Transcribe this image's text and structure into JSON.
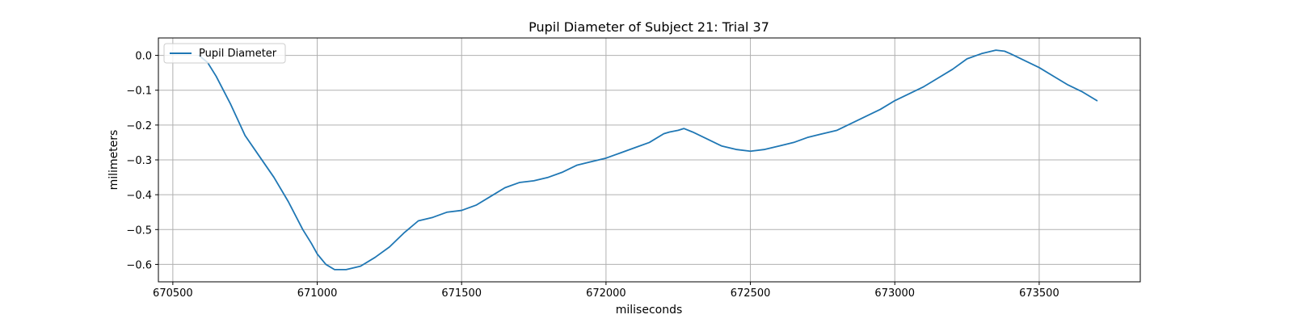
{
  "chart_data": {
    "type": "line",
    "title": "Pupil Diameter of Subject 21: Trial 37",
    "xlabel": "miliseconds",
    "ylabel": "milimeters",
    "xlim": [
      670450,
      673850
    ],
    "ylim": [
      -0.65,
      0.05
    ],
    "x_ticks": [
      670500,
      671000,
      671500,
      672000,
      672500,
      673000,
      673500
    ],
    "y_ticks": [
      0.0,
      -0.1,
      -0.2,
      -0.3,
      -0.4,
      -0.5,
      -0.6
    ],
    "y_tick_labels": [
      "0.0",
      "−0.1",
      "−0.2",
      "−0.3",
      "−0.4",
      "−0.5",
      "−0.6"
    ],
    "grid": true,
    "legend_position": "upper-left",
    "colors": {
      "series": "#1f77b4",
      "grid": "#b0b0b0",
      "axes": "#000000"
    },
    "series": [
      {
        "name": "Pupil Diameter",
        "x": [
          670590,
          670620,
          670650,
          670700,
          670750,
          670800,
          670850,
          670900,
          670950,
          670980,
          671000,
          671030,
          671060,
          671100,
          671150,
          671200,
          671250,
          671300,
          671350,
          671400,
          671450,
          671500,
          671550,
          671600,
          671650,
          671700,
          671750,
          671800,
          671850,
          671900,
          671950,
          672000,
          672050,
          672100,
          672150,
          672200,
          672220,
          672250,
          672270,
          672300,
          672350,
          672400,
          672450,
          672500,
          672550,
          672600,
          672650,
          672700,
          672750,
          672800,
          672850,
          672900,
          672950,
          673000,
          673050,
          673100,
          673150,
          673200,
          673250,
          673300,
          673350,
          673380,
          673400,
          673450,
          673500,
          673550,
          673600,
          673650,
          673700
        ],
        "y": [
          0.0,
          -0.02,
          -0.06,
          -0.14,
          -0.23,
          -0.29,
          -0.35,
          -0.42,
          -0.5,
          -0.54,
          -0.57,
          -0.6,
          -0.615,
          -0.615,
          -0.605,
          -0.58,
          -0.55,
          -0.51,
          -0.475,
          -0.465,
          -0.45,
          -0.445,
          -0.43,
          -0.405,
          -0.38,
          -0.365,
          -0.36,
          -0.35,
          -0.335,
          -0.315,
          -0.305,
          -0.295,
          -0.28,
          -0.265,
          -0.25,
          -0.225,
          -0.22,
          -0.215,
          -0.21,
          -0.22,
          -0.24,
          -0.26,
          -0.27,
          -0.275,
          -0.27,
          -0.26,
          -0.25,
          -0.235,
          -0.225,
          -0.215,
          -0.195,
          -0.175,
          -0.155,
          -0.13,
          -0.11,
          -0.09,
          -0.065,
          -0.04,
          -0.01,
          0.005,
          0.015,
          0.012,
          0.005,
          -0.015,
          -0.035,
          -0.06,
          -0.085,
          -0.105,
          -0.13
        ]
      }
    ]
  }
}
